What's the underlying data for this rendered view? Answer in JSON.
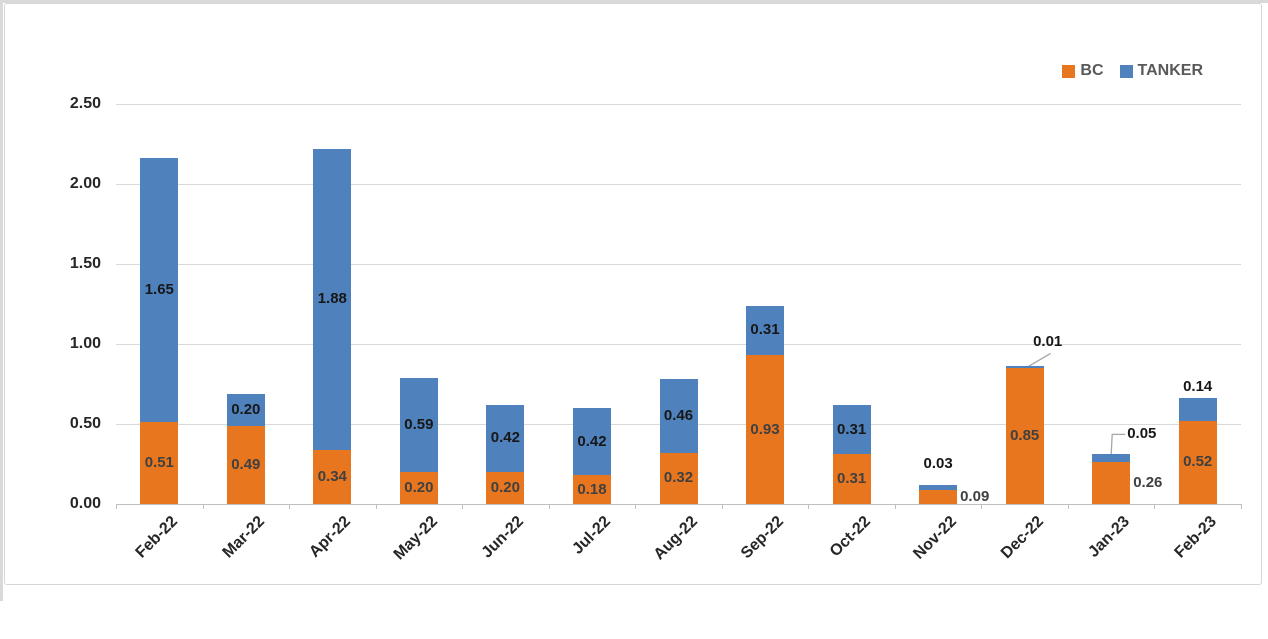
{
  "chart_data": {
    "type": "bar",
    "subtype": "stacked-column",
    "title": "",
    "categories": [
      "Feb-22",
      "Mar-22",
      "Apr-22",
      "May-22",
      "Jun-22",
      "Jul-22",
      "Aug-22",
      "Sep-22",
      "Oct-22",
      "Nov-22",
      "Dec-22",
      "Jan-23",
      "Feb-23"
    ],
    "series": [
      {
        "name": "BC",
        "color": "#e8761f",
        "label_color": "#404040",
        "values": [
          0.51,
          0.49,
          0.34,
          0.2,
          0.2,
          0.18,
          0.32,
          0.93,
          0.31,
          0.09,
          0.85,
          0.26,
          0.52
        ],
        "label_positions": [
          "inside",
          "inside",
          "inside",
          "inside",
          "inside",
          "inside",
          "inside",
          "inside",
          "inside",
          "right",
          "inside",
          "right",
          "inside"
        ]
      },
      {
        "name": "TANKER",
        "color": "#4f81bd",
        "label_color": "#171717",
        "values": [
          1.65,
          0.2,
          1.88,
          0.59,
          0.42,
          0.42,
          0.46,
          0.31,
          0.31,
          0.03,
          0.01,
          0.05,
          0.14
        ],
        "label_positions": [
          "inside",
          "inside",
          "inside",
          "inside",
          "inside",
          "inside",
          "inside",
          "inside",
          "inside",
          "above+12",
          "callout-diag",
          "callout-elbow",
          "above+2"
        ]
      }
    ],
    "value_format": "0.00",
    "y_axis": {
      "min": 0,
      "max": 2.5,
      "tick_labels": [
        "2.50",
        "2.00",
        "1.50",
        "1.00",
        "0.50",
        "0.00"
      ],
      "gridlines": true
    },
    "legend": {
      "position": "top-right",
      "entries": [
        "BC",
        "TANKER"
      ]
    },
    "colors": {
      "gridline": "#d9d9d9",
      "axis": "#bfbfbf",
      "leader_line": "#a6a6a6",
      "axis_text": "#262626",
      "legend_text": "#595959"
    }
  }
}
